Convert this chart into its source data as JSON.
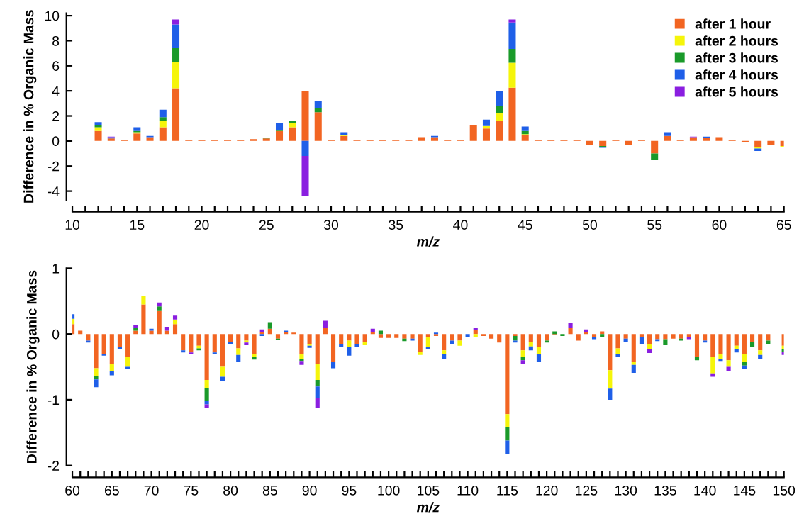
{
  "chart_data": [
    {
      "type": "bar",
      "stacked": true,
      "xlabel": "m/z",
      "ylabel": "Difference in % Organic Mass",
      "xlim": [
        10,
        65
      ],
      "ylim": [
        -4.7,
        10.2
      ],
      "yticks": [
        -4,
        -2,
        0,
        2,
        4,
        6,
        8,
        10
      ],
      "xticks": [
        10,
        {
          "value": 11,
          "label": null
        },
        {
          "value": 12,
          "label": null
        },
        {
          "value": 13,
          "label": null
        },
        {
          "value": 14,
          "label": null
        },
        15,
        {
          "value": 16,
          "label": null
        },
        {
          "value": 17,
          "label": null
        },
        {
          "value": 18,
          "label": null
        },
        {
          "value": 19,
          "label": null
        },
        20,
        {
          "value": 21,
          "label": null
        },
        {
          "value": 22,
          "label": null
        },
        {
          "value": 23,
          "label": null
        },
        {
          "value": 24,
          "label": null
        },
        25,
        {
          "value": 26,
          "label": null
        },
        {
          "value": 27,
          "label": null
        },
        {
          "value": 28,
          "label": null
        },
        {
          "value": 29,
          "label": null
        },
        30,
        {
          "value": 31,
          "label": null
        },
        {
          "value": 32,
          "label": null
        },
        {
          "value": 33,
          "label": null
        },
        {
          "value": 34,
          "label": null
        },
        35,
        {
          "value": 36,
          "label": null
        },
        {
          "value": 37,
          "label": null
        },
        {
          "value": 38,
          "label": null
        },
        {
          "value": 39,
          "label": null
        },
        40,
        {
          "value": 41,
          "label": null
        },
        {
          "value": 42,
          "label": null
        },
        {
          "value": 43,
          "label": null
        },
        {
          "value": 44,
          "label": null
        },
        45,
        {
          "value": 46,
          "label": null
        },
        {
          "value": 47,
          "label": null
        },
        {
          "value": 48,
          "label": null
        },
        {
          "value": 49,
          "label": null
        },
        50,
        {
          "value": 51,
          "label": null
        },
        {
          "value": 52,
          "label": null
        },
        {
          "value": 53,
          "label": null
        },
        {
          "value": 54,
          "label": null
        },
        55,
        {
          "value": 56,
          "label": null
        },
        {
          "value": 57,
          "label": null
        },
        {
          "value": 58,
          "label": null
        },
        {
          "value": 59,
          "label": null
        },
        60,
        {
          "value": 61,
          "label": null
        },
        {
          "value": 62,
          "label": null
        },
        {
          "value": 63,
          "label": null
        },
        {
          "value": 64,
          "label": null
        },
        65
      ],
      "legend": "top right",
      "marker": "square",
      "x": [
        12,
        13,
        14,
        15,
        16,
        17,
        18,
        19,
        20,
        21,
        22,
        23,
        24,
        25,
        26,
        27,
        28,
        29,
        30,
        31,
        32,
        33,
        34,
        35,
        36,
        37,
        38,
        39,
        40,
        41,
        42,
        43,
        44,
        45,
        46,
        47,
        48,
        49,
        50,
        51,
        52,
        53,
        54,
        55,
        56,
        57,
        58,
        59,
        60,
        61,
        62,
        63,
        64,
        65
      ],
      "series": [
        {
          "name": "after 1 hour",
          "color": "#f26522",
          "values": [
            0.8,
            0.2,
            0.05,
            0.6,
            0.3,
            1.1,
            4.2,
            0.05,
            0.05,
            0.05,
            0.05,
            0.05,
            0.15,
            0.2,
            0.8,
            1.1,
            4.0,
            2.3,
            0.05,
            0.4,
            0.05,
            0.05,
            0.05,
            0.05,
            0.05,
            0.3,
            0.3,
            0.05,
            0.05,
            1.3,
            1.0,
            1.6,
            4.25,
            0.45,
            0.05,
            0.05,
            0.05,
            0.05,
            -0.3,
            -0.4,
            0.05,
            -0.3,
            0.05,
            -1.0,
            0.4,
            0.05,
            0.3,
            0.25,
            0.3,
            0.05,
            -0.1,
            -0.5,
            -0.3,
            -0.4
          ]
        },
        {
          "name": "after 2 hours",
          "color": "#f5f50a",
          "values": [
            0.3,
            null,
            null,
            0.1,
            null,
            0.5,
            2.1,
            null,
            null,
            null,
            null,
            null,
            null,
            null,
            null,
            0.3,
            null,
            null,
            null,
            0.1,
            null,
            null,
            null,
            null,
            null,
            null,
            null,
            null,
            null,
            null,
            0.2,
            0.6,
            2.0,
            0.1,
            null,
            null,
            null,
            null,
            null,
            null,
            null,
            null,
            null,
            null,
            null,
            null,
            null,
            null,
            null,
            null,
            null,
            -0.1,
            null,
            -0.1
          ]
        },
        {
          "name": "after 3 hours",
          "color": "#1a9a2a",
          "values": [
            0.2,
            null,
            null,
            0.1,
            null,
            0.3,
            1.1,
            null,
            null,
            null,
            null,
            null,
            null,
            0.05,
            0.1,
            0.2,
            null,
            0.3,
            null,
            null,
            null,
            null,
            null,
            null,
            null,
            null,
            null,
            null,
            null,
            null,
            null,
            0.6,
            1.1,
            0.25,
            null,
            null,
            null,
            0.05,
            null,
            -0.1,
            null,
            null,
            null,
            -0.5,
            null,
            null,
            null,
            null,
            null,
            0.05,
            null,
            null,
            null,
            null
          ]
        },
        {
          "name": "after 4 hours",
          "color": "#1f5fe8",
          "values": [
            0.2,
            0.1,
            null,
            0.3,
            0.1,
            0.6,
            1.9,
            null,
            null,
            null,
            null,
            null,
            null,
            null,
            0.5,
            null,
            -1.2,
            0.6,
            null,
            0.2,
            null,
            null,
            null,
            null,
            null,
            null,
            0.1,
            null,
            null,
            null,
            0.5,
            1.2,
            2.1,
            0.35,
            null,
            null,
            null,
            null,
            null,
            -0.05,
            null,
            null,
            null,
            null,
            0.3,
            null,
            null,
            0.1,
            null,
            null,
            null,
            -0.2,
            null,
            null
          ]
        },
        {
          "name": "after 5 hours",
          "color": "#8a1ee0",
          "values": [
            null,
            0.05,
            null,
            null,
            null,
            null,
            0.4,
            null,
            null,
            null,
            null,
            null,
            null,
            null,
            null,
            null,
            -3.2,
            null,
            null,
            null,
            null,
            null,
            null,
            null,
            null,
            null,
            null,
            null,
            null,
            null,
            null,
            null,
            0.25,
            null,
            null,
            null,
            null,
            null,
            null,
            null,
            null,
            null,
            null,
            null,
            null,
            null,
            0.05,
            null,
            null,
            null,
            null,
            null,
            null,
            null
          ]
        }
      ]
    },
    {
      "type": "bar",
      "stacked": true,
      "xlabel": "m/z",
      "ylabel": "Difference in % Organic Mass",
      "xlim": [
        60,
        150
      ],
      "ylim": [
        -2,
        1
      ],
      "yticks": [
        -2,
        -1,
        0,
        1
      ],
      "xticks": [
        60,
        {
          "value": 61,
          "label": null
        },
        {
          "value": 62,
          "label": null
        },
        {
          "value": 63,
          "label": null
        },
        {
          "value": 64,
          "label": null
        },
        65,
        {
          "value": 66,
          "label": null
        },
        {
          "value": 67,
          "label": null
        },
        {
          "value": 68,
          "label": null
        },
        {
          "value": 69,
          "label": null
        },
        70,
        {
          "value": 71,
          "label": null
        },
        {
          "value": 72,
          "label": null
        },
        {
          "value": 73,
          "label": null
        },
        {
          "value": 74,
          "label": null
        },
        75,
        {
          "value": 76,
          "label": null
        },
        {
          "value": 77,
          "label": null
        },
        {
          "value": 78,
          "label": null
        },
        {
          "value": 79,
          "label": null
        },
        80,
        {
          "value": 81,
          "label": null
        },
        {
          "value": 82,
          "label": null
        },
        {
          "value": 83,
          "label": null
        },
        {
          "value": 84,
          "label": null
        },
        85,
        {
          "value": 86,
          "label": null
        },
        {
          "value": 87,
          "label": null
        },
        {
          "value": 88,
          "label": null
        },
        {
          "value": 89,
          "label": null
        },
        90,
        {
          "value": 91,
          "label": null
        },
        {
          "value": 92,
          "label": null
        },
        {
          "value": 93,
          "label": null
        },
        {
          "value": 94,
          "label": null
        },
        95,
        {
          "value": 96,
          "label": null
        },
        {
          "value": 97,
          "label": null
        },
        {
          "value": 98,
          "label": null
        },
        {
          "value": 99,
          "label": null
        },
        100,
        {
          "value": 101,
          "label": null
        },
        {
          "value": 102,
          "label": null
        },
        {
          "value": 103,
          "label": null
        },
        {
          "value": 104,
          "label": null
        },
        105,
        {
          "value": 106,
          "label": null
        },
        {
          "value": 107,
          "label": null
        },
        {
          "value": 108,
          "label": null
        },
        {
          "value": 109,
          "label": null
        },
        110,
        {
          "value": 111,
          "label": null
        },
        {
          "value": 112,
          "label": null
        },
        {
          "value": 113,
          "label": null
        },
        {
          "value": 114,
          "label": null
        },
        115,
        {
          "value": 116,
          "label": null
        },
        {
          "value": 117,
          "label": null
        },
        {
          "value": 118,
          "label": null
        },
        {
          "value": 119,
          "label": null
        },
        120,
        {
          "value": 121,
          "label": null
        },
        {
          "value": 122,
          "label": null
        },
        {
          "value": 123,
          "label": null
        },
        {
          "value": 124,
          "label": null
        },
        125,
        {
          "value": 126,
          "label": null
        },
        {
          "value": 127,
          "label": null
        },
        {
          "value": 128,
          "label": null
        },
        {
          "value": 129,
          "label": null
        },
        130,
        {
          "value": 131,
          "label": null
        },
        {
          "value": 132,
          "label": null
        },
        {
          "value": 133,
          "label": null
        },
        {
          "value": 134,
          "label": null
        },
        135,
        {
          "value": 136,
          "label": null
        },
        {
          "value": 137,
          "label": null
        },
        {
          "value": 138,
          "label": null
        },
        {
          "value": 139,
          "label": null
        },
        140,
        {
          "value": 141,
          "label": null
        },
        {
          "value": 142,
          "label": null
        },
        {
          "value": 143,
          "label": null
        },
        {
          "value": 144,
          "label": null
        },
        145,
        {
          "value": 146,
          "label": null
        },
        {
          "value": 147,
          "label": null
        },
        {
          "value": 148,
          "label": null
        },
        {
          "value": 149,
          "label": null
        },
        150
      ],
      "x": [
        60,
        61,
        62,
        63,
        64,
        65,
        66,
        67,
        68,
        69,
        70,
        71,
        72,
        73,
        74,
        75,
        76,
        77,
        78,
        79,
        80,
        81,
        82,
        83,
        84,
        85,
        86,
        87,
        88,
        89,
        90,
        91,
        92,
        93,
        94,
        95,
        96,
        97,
        98,
        99,
        100,
        101,
        102,
        103,
        104,
        105,
        106,
        107,
        108,
        109,
        110,
        111,
        112,
        113,
        114,
        115,
        116,
        117,
        118,
        119,
        120,
        121,
        122,
        123,
        124,
        125,
        126,
        127,
        128,
        129,
        130,
        131,
        132,
        133,
        134,
        135,
        136,
        137,
        138,
        139,
        140,
        141,
        142,
        143,
        144,
        145,
        146,
        147,
        148,
        149,
        150
      ],
      "series": [
        {
          "color": "#f26522",
          "values": [
            0.15,
            0.05,
            -0.1,
            -0.52,
            -0.3,
            -0.45,
            -0.2,
            -0.35,
            0.05,
            0.45,
            0.05,
            0.35,
            0.05,
            0.15,
            -0.25,
            -0.28,
            -0.18,
            -0.7,
            -0.28,
            -0.5,
            -0.12,
            -0.22,
            -0.1,
            -0.3,
            0.03,
            0.08,
            -0.07,
            0.03,
            0.02,
            -0.3,
            -0.15,
            -0.45,
            0.1,
            -0.42,
            -0.15,
            -0.1,
            -0.15,
            -0.12,
            0.03,
            -0.06,
            -0.06,
            -0.06,
            -0.07,
            -0.07,
            -0.27,
            -0.05,
            -0.03,
            -0.25,
            -0.1,
            -0.1,
            null,
            0.06,
            -0.03,
            -0.07,
            -0.13,
            -1.22,
            -0.03,
            -0.25,
            -0.12,
            -0.2,
            -0.1,
            -0.02,
            null,
            0.1,
            -0.1,
            0.03,
            -0.05,
            0.04,
            -0.55,
            -0.22,
            -0.07,
            -0.42,
            -0.05,
            -0.15,
            -0.08,
            -0.08,
            -0.07,
            -0.07,
            -0.05,
            -0.35,
            -0.1,
            -0.35,
            -0.3,
            -0.4,
            -0.18,
            -0.3,
            -0.12,
            -0.25,
            -0.1,
            null,
            -0.18
          ]
        },
        {
          "color": "#f5f50a",
          "values": [
            0.08,
            null,
            null,
            -0.12,
            null,
            -0.12,
            null,
            -0.15,
            null,
            0.13,
            null,
            null,
            null,
            0.07,
            null,
            null,
            -0.04,
            -0.12,
            null,
            -0.15,
            null,
            -0.1,
            -0.03,
            -0.05,
            null,
            null,
            null,
            null,
            null,
            -0.08,
            -0.03,
            -0.25,
            null,
            null,
            null,
            -0.1,
            null,
            -0.05,
            null,
            null,
            null,
            null,
            null,
            null,
            -0.05,
            -0.15,
            null,
            -0.05,
            null,
            -0.08,
            null,
            -0.05,
            null,
            null,
            null,
            -0.2,
            null,
            -0.1,
            -0.07,
            -0.1,
            null,
            null,
            null,
            null,
            null,
            null,
            null,
            null,
            -0.28,
            -0.08,
            null,
            -0.05,
            null,
            -0.08,
            null,
            null,
            null,
            null,
            null,
            null,
            null,
            -0.25,
            -0.08,
            -0.1,
            -0.05,
            -0.12,
            null,
            -0.07,
            null,
            null,
            -0.05
          ]
        },
        {
          "color": "#1a9a2a",
          "values": [
            null,
            null,
            null,
            -0.05,
            null,
            null,
            null,
            null,
            0.05,
            null,
            null,
            0.07,
            null,
            null,
            null,
            null,
            -0.03,
            -0.2,
            null,
            null,
            null,
            null,
            null,
            -0.04,
            null,
            0.1,
            -0.02,
            null,
            null,
            -0.03,
            null,
            -0.1,
            null,
            null,
            null,
            null,
            null,
            null,
            null,
            0.05,
            null,
            null,
            -0.04,
            null,
            null,
            null,
            null,
            null,
            null,
            null,
            null,
            null,
            null,
            null,
            null,
            -0.2,
            -0.07,
            -0.05,
            null,
            null,
            -0.03,
            0.04,
            -0.03,
            null,
            null,
            null,
            null,
            -0.05,
            null,
            null,
            null,
            null,
            null,
            null,
            null,
            -0.08,
            null,
            -0.03,
            null,
            -0.05,
            null,
            null,
            null,
            null,
            null,
            -0.06,
            -0.08,
            null,
            -0.05,
            null,
            -0.04
          ]
        },
        {
          "color": "#1f5fe8",
          "values": [
            0.07,
            null,
            -0.03,
            -0.12,
            -0.03,
            -0.06,
            -0.03,
            -0.03,
            null,
            null,
            0.03,
            null,
            null,
            null,
            -0.03,
            null,
            null,
            -0.05,
            -0.03,
            -0.07,
            -0.03,
            -0.1,
            null,
            null,
            -0.03,
            null,
            null,
            0.02,
            null,
            null,
            -0.03,
            -0.18,
            null,
            -0.1,
            -0.05,
            -0.13,
            -0.05,
            null,
            null,
            null,
            null,
            null,
            null,
            -0.03,
            null,
            -0.03,
            0.02,
            -0.08,
            -0.05,
            null,
            -0.05,
            null,
            null,
            null,
            null,
            -0.2,
            -0.03,
            null,
            -0.06,
            -0.13,
            null,
            null,
            null,
            null,
            null,
            null,
            -0.03,
            null,
            -0.17,
            -0.05,
            -0.05,
            -0.12,
            -0.1,
            null,
            -0.03,
            null,
            null,
            null,
            null,
            null,
            -0.03,
            null,
            -0.03,
            null,
            -0.05,
            -0.05,
            null,
            -0.06,
            null,
            null,
            null
          ]
        },
        {
          "color": "#8a1ee0",
          "values": [
            null,
            null,
            null,
            null,
            null,
            null,
            null,
            null,
            0.04,
            null,
            null,
            0.06,
            0.06,
            0.06,
            null,
            -0.03,
            null,
            -0.05,
            null,
            null,
            null,
            null,
            -0.03,
            null,
            0.04,
            null,
            null,
            null,
            null,
            -0.06,
            null,
            -0.15,
            0.1,
            null,
            null,
            null,
            null,
            null,
            0.05,
            null,
            null,
            null,
            null,
            null,
            null,
            null,
            null,
            null,
            null,
            null,
            null,
            0.04,
            null,
            null,
            null,
            null,
            null,
            -0.05,
            null,
            null,
            null,
            null,
            null,
            0.07,
            null,
            0.04,
            null,
            null,
            null,
            null,
            null,
            null,
            null,
            -0.06,
            null,
            null,
            null,
            null,
            -0.03,
            null,
            null,
            -0.05,
            null,
            -0.07,
            null,
            null,
            null,
            null,
            null,
            null,
            -0.05
          ]
        }
      ]
    }
  ]
}
